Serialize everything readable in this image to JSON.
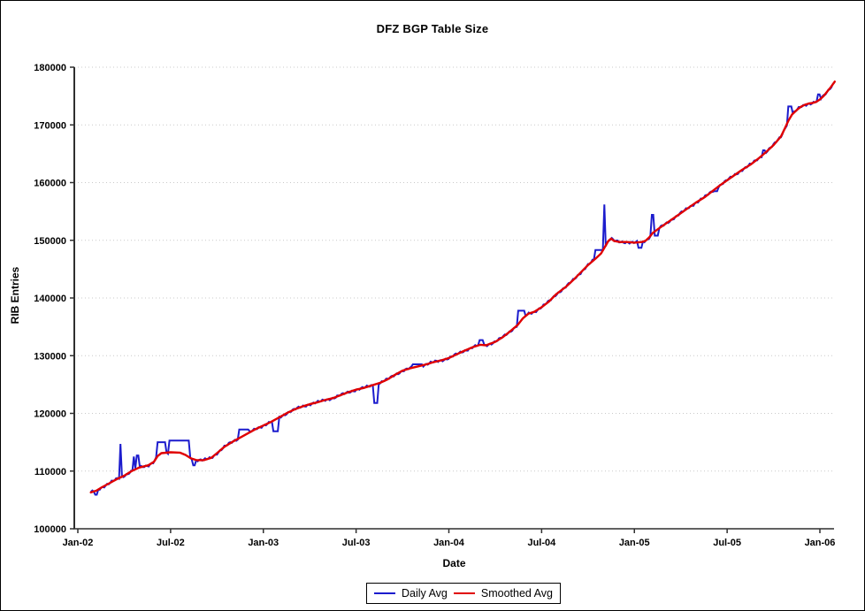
{
  "chart_data": {
    "type": "line",
    "title": "DFZ BGP Table Size",
    "xlabel": "Date",
    "ylabel": "RIB Entries",
    "background": "#ffffff",
    "axis_color": "#2f2f2f",
    "grid_color": "#c9c9c9",
    "grid": "horizontal-dotted",
    "legend_position": "bottom-center",
    "x_axis": {
      "unit": "years-since-Jan-2002",
      "range": [
        0,
        4.09
      ],
      "ticks": [
        {
          "label": "Jan-02",
          "t": 0
        },
        {
          "label": "Jul-02",
          "t": 0.5
        },
        {
          "label": "Jan-03",
          "t": 1
        },
        {
          "label": "Jul-03",
          "t": 1.5
        },
        {
          "label": "Jan-04",
          "t": 2
        },
        {
          "label": "Jul-04",
          "t": 2.5
        },
        {
          "label": "Jan-05",
          "t": 3
        },
        {
          "label": "Jul-05",
          "t": 3.5
        },
        {
          "label": "Jan-06",
          "t": 4
        }
      ]
    },
    "y_axis": {
      "min": 100000,
      "max": 180000,
      "step": 10000,
      "tick_labels": [
        "100000",
        "110000",
        "120000",
        "130000",
        "140000",
        "150000",
        "160000",
        "170000",
        "180000"
      ]
    },
    "series": [
      {
        "name": "Daily Avg",
        "color": "#1c1ccd",
        "basis": "smoothed",
        "jitter_amplitude": 260,
        "sample_step": 0.008,
        "spikes": [
          [
            0.09,
            0.11,
            105900
          ],
          [
            0.225,
            0.237,
            114700
          ],
          [
            0.295,
            0.307,
            112500
          ],
          [
            0.315,
            0.327,
            112700
          ],
          [
            0.424,
            0.478,
            115000
          ],
          [
            0.49,
            0.6,
            115300
          ],
          [
            0.615,
            0.635,
            111000
          ],
          [
            0.87,
            0.925,
            117200
          ],
          [
            1.05,
            1.08,
            116900
          ],
          [
            1.595,
            1.615,
            121800
          ],
          [
            1.74,
            1.765,
            127300
          ],
          [
            1.8,
            1.86,
            128500
          ],
          [
            2.165,
            2.185,
            132700
          ],
          [
            2.37,
            2.412,
            137800
          ],
          [
            2.79,
            2.825,
            148300
          ],
          [
            2.834,
            2.846,
            156200
          ],
          [
            3.02,
            3.04,
            148700
          ],
          [
            3.094,
            3.104,
            154400
          ],
          [
            3.108,
            3.13,
            150800
          ],
          [
            3.43,
            3.45,
            158500
          ],
          [
            3.69,
            3.71,
            165600
          ],
          [
            3.825,
            3.85,
            173200
          ],
          [
            3.99,
            4.005,
            175300
          ]
        ]
      },
      {
        "name": "Smoothed Avg",
        "color": "#e00000",
        "points": [
          [
            0.07,
            106300
          ],
          [
            0.1,
            106600
          ],
          [
            0.13,
            107200
          ],
          [
            0.17,
            107900
          ],
          [
            0.21,
            108600
          ],
          [
            0.25,
            109200
          ],
          [
            0.29,
            110000
          ],
          [
            0.33,
            110600
          ],
          [
            0.38,
            111000
          ],
          [
            0.41,
            111600
          ],
          [
            0.43,
            112600
          ],
          [
            0.45,
            113100
          ],
          [
            0.5,
            113250
          ],
          [
            0.55,
            113200
          ],
          [
            0.58,
            112800
          ],
          [
            0.61,
            112200
          ],
          [
            0.64,
            111900
          ],
          [
            0.68,
            111900
          ],
          [
            0.72,
            112300
          ],
          [
            0.75,
            113100
          ],
          [
            0.79,
            114200
          ],
          [
            0.83,
            115000
          ],
          [
            0.88,
            115900
          ],
          [
            0.92,
            116600
          ],
          [
            0.96,
            117300
          ],
          [
            1.0,
            117900
          ],
          [
            1.04,
            118500
          ],
          [
            1.08,
            119200
          ],
          [
            1.13,
            120100
          ],
          [
            1.17,
            120700
          ],
          [
            1.21,
            121200
          ],
          [
            1.25,
            121600
          ],
          [
            1.29,
            121900
          ],
          [
            1.33,
            122300
          ],
          [
            1.38,
            122700
          ],
          [
            1.42,
            123200
          ],
          [
            1.46,
            123700
          ],
          [
            1.5,
            124100
          ],
          [
            1.54,
            124400
          ],
          [
            1.58,
            124800
          ],
          [
            1.63,
            125300
          ],
          [
            1.67,
            125900
          ],
          [
            1.71,
            126700
          ],
          [
            1.75,
            127400
          ],
          [
            1.79,
            127800
          ],
          [
            1.83,
            128100
          ],
          [
            1.88,
            128500
          ],
          [
            1.92,
            128900
          ],
          [
            1.96,
            129200
          ],
          [
            2.0,
            129600
          ],
          [
            2.04,
            130200
          ],
          [
            2.08,
            130800
          ],
          [
            2.13,
            131500
          ],
          [
            2.17,
            131900
          ],
          [
            2.2,
            131800
          ],
          [
            2.25,
            132400
          ],
          [
            2.29,
            133200
          ],
          [
            2.33,
            134200
          ],
          [
            2.37,
            135300
          ],
          [
            2.4,
            136500
          ],
          [
            2.43,
            137300
          ],
          [
            2.46,
            137600
          ],
          [
            2.5,
            138400
          ],
          [
            2.54,
            139400
          ],
          [
            2.58,
            140700
          ],
          [
            2.63,
            141900
          ],
          [
            2.67,
            143100
          ],
          [
            2.71,
            144400
          ],
          [
            2.75,
            145700
          ],
          [
            2.79,
            146800
          ],
          [
            2.82,
            147700
          ],
          [
            2.84,
            148800
          ],
          [
            2.86,
            149900
          ],
          [
            2.875,
            150300
          ],
          [
            2.89,
            149900
          ],
          [
            2.92,
            149700
          ],
          [
            2.96,
            149700
          ],
          [
            3.0,
            149600
          ],
          [
            3.04,
            149700
          ],
          [
            3.06,
            149900
          ],
          [
            3.08,
            150500
          ],
          [
            3.1,
            151300
          ],
          [
            3.13,
            152000
          ],
          [
            3.17,
            152900
          ],
          [
            3.21,
            153800
          ],
          [
            3.25,
            154700
          ],
          [
            3.29,
            155600
          ],
          [
            3.33,
            156500
          ],
          [
            3.38,
            157500
          ],
          [
            3.42,
            158500
          ],
          [
            3.46,
            159500
          ],
          [
            3.5,
            160400
          ],
          [
            3.54,
            161300
          ],
          [
            3.58,
            162200
          ],
          [
            3.63,
            163200
          ],
          [
            3.67,
            164200
          ],
          [
            3.71,
            165300
          ],
          [
            3.75,
            166500
          ],
          [
            3.79,
            168000
          ],
          [
            3.81,
            169300
          ],
          [
            3.83,
            170700
          ],
          [
            3.85,
            171800
          ],
          [
            3.88,
            172700
          ],
          [
            3.9,
            173200
          ],
          [
            3.92,
            173500
          ],
          [
            3.94,
            173700
          ],
          [
            3.96,
            173800
          ],
          [
            3.98,
            174000
          ],
          [
            4.0,
            174400
          ],
          [
            4.02,
            175000
          ],
          [
            4.04,
            175800
          ],
          [
            4.06,
            176600
          ],
          [
            4.08,
            177500
          ]
        ]
      }
    ]
  }
}
